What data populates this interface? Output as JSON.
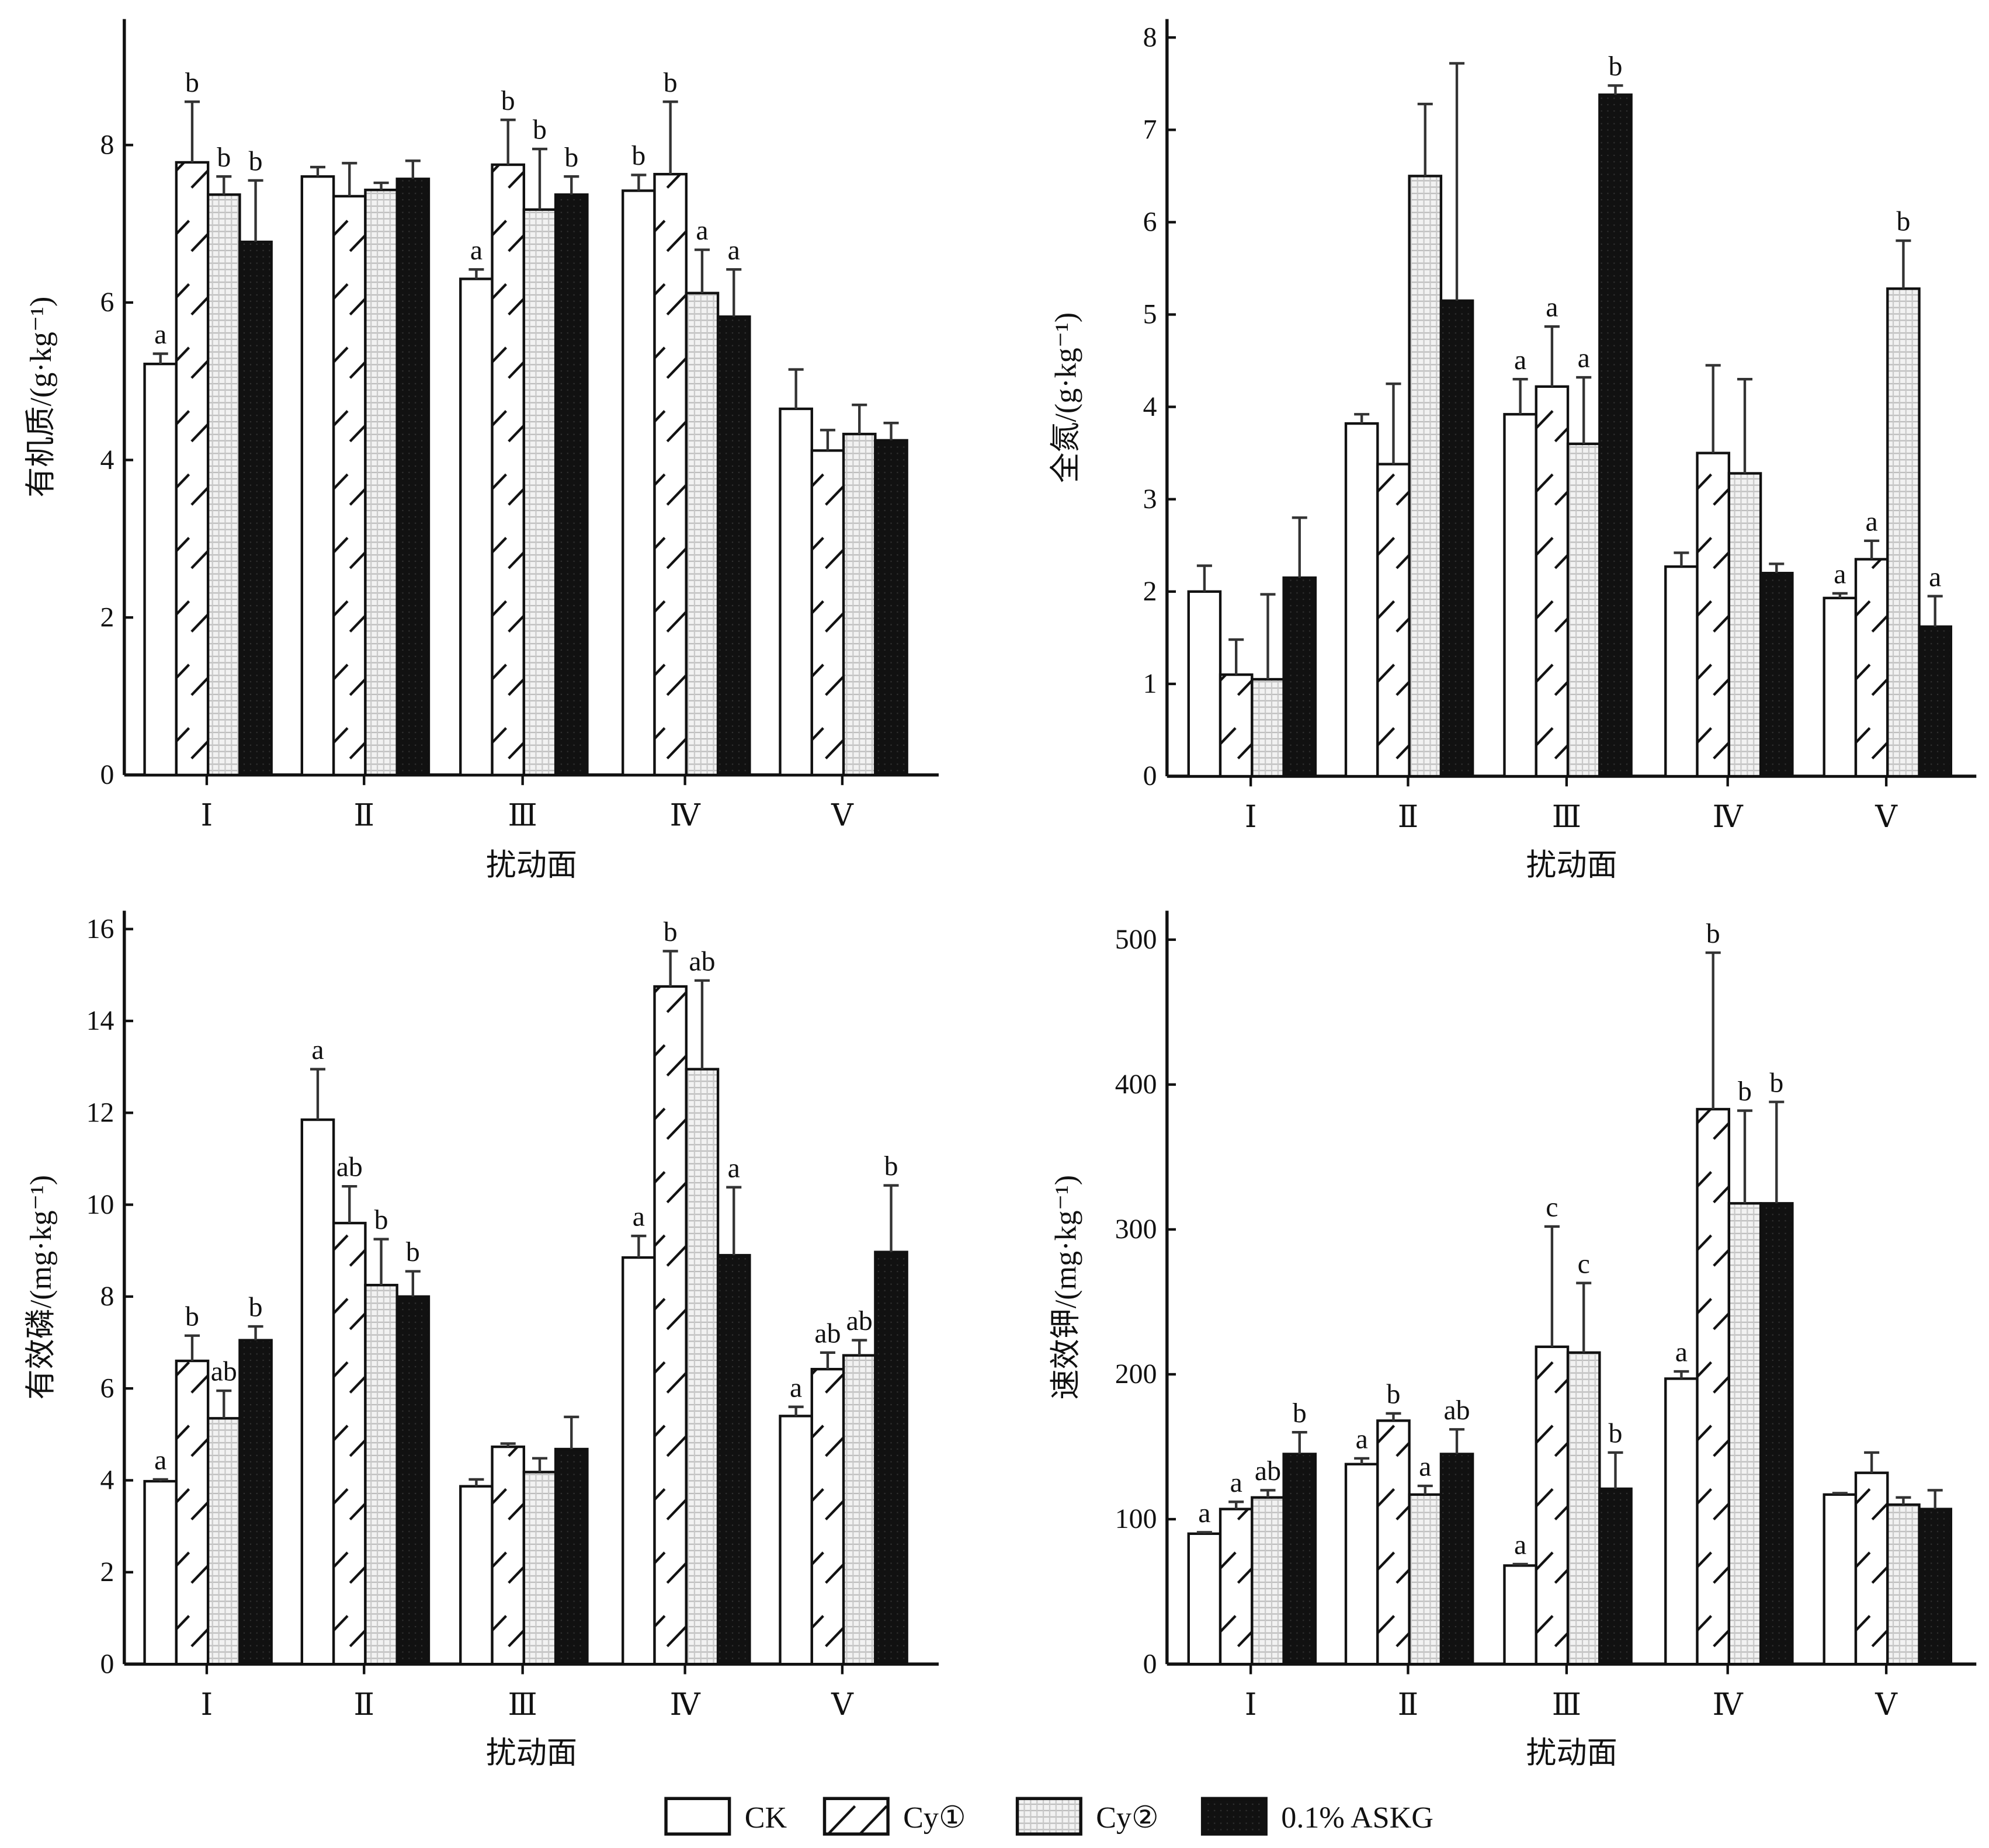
{
  "legend": {
    "placement": "bottom-center",
    "entries": [
      {
        "name": "CK",
        "fill": "white"
      },
      {
        "name": "Cy①",
        "fill": "hatch"
      },
      {
        "name": "Cy②",
        "fill": "grid"
      },
      {
        "name": "0.1% ASKG",
        "fill": "black"
      }
    ]
  },
  "chart_data": [
    {
      "type": "bar",
      "xlabel": "扰动面",
      "ylabel": "有机质/(g·kg⁻¹)",
      "categories": [
        "Ⅰ",
        "Ⅱ",
        "Ⅲ",
        "Ⅳ",
        "Ⅴ"
      ],
      "ylim": [
        0,
        9.6
      ],
      "yticks": [
        0,
        2,
        4,
        6,
        8
      ],
      "series": [
        {
          "name": "CK",
          "values": [
            5.22,
            7.6,
            6.3,
            7.42,
            4.65
          ],
          "err_top": [
            5.35,
            7.72,
            6.42,
            7.62,
            5.15
          ],
          "letters": [
            "a",
            "",
            "a",
            "b",
            ""
          ]
        },
        {
          "name": "Cy①",
          "values": [
            7.78,
            7.35,
            7.75,
            7.63,
            4.12
          ],
          "err_top": [
            8.55,
            7.77,
            8.32,
            8.55,
            4.38
          ],
          "letters": [
            "b",
            "",
            "b",
            "b",
            ""
          ]
        },
        {
          "name": "Cy②",
          "values": [
            7.37,
            7.43,
            7.18,
            6.12,
            4.33
          ],
          "err_top": [
            7.6,
            7.52,
            7.95,
            6.67,
            4.7
          ],
          "letters": [
            "b",
            "",
            "b",
            "a",
            ""
          ]
        },
        {
          "name": "0.1% ASKG",
          "values": [
            6.77,
            7.57,
            7.37,
            5.82,
            4.25
          ],
          "err_top": [
            7.55,
            7.8,
            7.6,
            6.42,
            4.47
          ],
          "letters": [
            "b",
            "",
            "b",
            "a",
            ""
          ]
        }
      ]
    },
    {
      "type": "bar",
      "xlabel": "扰动面",
      "ylabel": "全氮/(g·kg⁻¹)",
      "categories": [
        "Ⅰ",
        "Ⅱ",
        "Ⅲ",
        "Ⅳ",
        "Ⅴ"
      ],
      "ylim": [
        0,
        8.2
      ],
      "yticks": [
        0,
        1,
        2,
        3,
        4,
        5,
        6,
        7,
        8
      ],
      "series": [
        {
          "name": "CK",
          "values": [
            2.0,
            3.82,
            3.92,
            2.27,
            1.93
          ],
          "err_top": [
            2.28,
            3.92,
            4.3,
            2.42,
            1.98
          ],
          "letters": [
            "",
            "",
            "a",
            "",
            "a"
          ]
        },
        {
          "name": "Cy①",
          "values": [
            1.1,
            3.38,
            4.22,
            3.5,
            2.35
          ],
          "err_top": [
            1.48,
            4.25,
            4.87,
            4.45,
            2.55
          ],
          "letters": [
            "",
            "",
            "a",
            "",
            "a"
          ]
        },
        {
          "name": "Cy②",
          "values": [
            1.05,
            6.5,
            3.6,
            3.28,
            5.28
          ],
          "err_top": [
            1.97,
            7.28,
            4.32,
            4.3,
            5.8
          ],
          "letters": [
            "",
            "",
            "a",
            "",
            "b"
          ]
        },
        {
          "name": "0.1% ASKG",
          "values": [
            2.15,
            5.15,
            7.38,
            2.2,
            1.62
          ],
          "err_top": [
            2.8,
            7.72,
            7.48,
            2.3,
            1.95
          ],
          "letters": [
            "",
            "",
            "b",
            "",
            "a"
          ]
        }
      ]
    },
    {
      "type": "bar",
      "xlabel": "扰动面",
      "ylabel": "有效磷/(mg·kg⁻¹)",
      "categories": [
        "Ⅰ",
        "Ⅱ",
        "Ⅲ",
        "Ⅳ",
        "Ⅴ"
      ],
      "ylim": [
        0,
        16.4
      ],
      "yticks": [
        0,
        2,
        4,
        6,
        8,
        10,
        12,
        14,
        16
      ],
      "series": [
        {
          "name": "CK",
          "values": [
            3.98,
            11.85,
            3.87,
            8.85,
            5.4
          ],
          "err_top": [
            4.02,
            12.95,
            4.02,
            9.32,
            5.6
          ],
          "letters": [
            "a",
            "a",
            "",
            "a",
            "a"
          ]
        },
        {
          "name": "Cy①",
          "values": [
            6.6,
            9.6,
            4.73,
            14.75,
            6.42
          ],
          "err_top": [
            7.15,
            10.4,
            4.8,
            15.52,
            6.78
          ],
          "letters": [
            "b",
            "ab",
            "",
            "b",
            "ab"
          ]
        },
        {
          "name": "Cy②",
          "values": [
            5.35,
            8.25,
            4.18,
            12.95,
            6.72
          ],
          "err_top": [
            5.95,
            9.25,
            4.48,
            14.88,
            7.05
          ],
          "letters": [
            "ab",
            "b",
            "",
            "ab",
            "ab"
          ]
        },
        {
          "name": "0.1% ASKG",
          "values": [
            7.05,
            8.0,
            4.68,
            8.9,
            8.97
          ],
          "err_top": [
            7.35,
            8.55,
            5.38,
            10.38,
            10.42
          ],
          "letters": [
            "b",
            "b",
            "",
            "a",
            "b"
          ]
        }
      ]
    },
    {
      "type": "bar",
      "xlabel": "扰动面",
      "ylabel": "速效钾/(mg·kg⁻¹)",
      "categories": [
        "Ⅰ",
        "Ⅱ",
        "Ⅲ",
        "Ⅳ",
        "Ⅴ"
      ],
      "ylim": [
        0,
        520
      ],
      "yticks": [
        0,
        100,
        200,
        300,
        400,
        500
      ],
      "series": [
        {
          "name": "CK",
          "values": [
            90,
            138,
            68,
            197,
            117
          ],
          "err_top": [
            91,
            142,
            69,
            202,
            118
          ],
          "letters": [
            "a",
            "a",
            "a",
            "a",
            ""
          ]
        },
        {
          "name": "Cy①",
          "values": [
            107,
            168,
            219,
            383,
            132
          ],
          "err_top": [
            112,
            173,
            302,
            491,
            146
          ],
          "letters": [
            "a",
            "b",
            "c",
            "b",
            ""
          ]
        },
        {
          "name": "Cy②",
          "values": [
            115,
            117,
            215,
            318,
            110
          ],
          "err_top": [
            120,
            123,
            263,
            382,
            115
          ],
          "letters": [
            "ab",
            "a",
            "c",
            "b",
            ""
          ]
        },
        {
          "name": "0.1% ASKG",
          "values": [
            145,
            145,
            121,
            318,
            107
          ],
          "err_top": [
            160,
            162,
            146,
            388,
            120
          ],
          "letters": [
            "b",
            "ab",
            "b",
            "b",
            ""
          ]
        }
      ]
    }
  ]
}
